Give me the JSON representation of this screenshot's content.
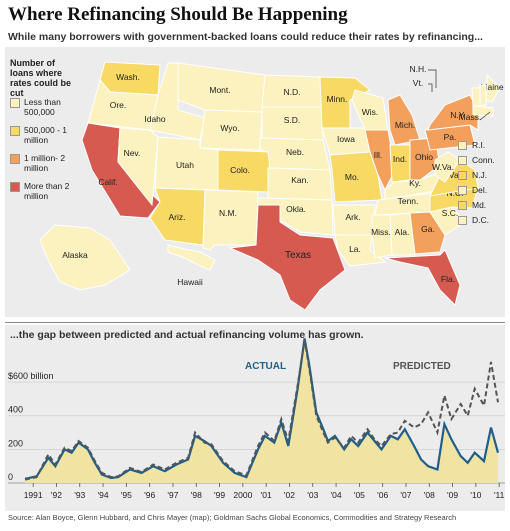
{
  "title": "Where Refinancing Should Be Happening",
  "subtitle": "While many borrowers with government-backed loans could reduce their rates by refinancing...",
  "map": {
    "legend_title": "Number of loans where rates could be cut",
    "legend": [
      {
        "label": "Less than 500,000",
        "color": "#fbf2bf"
      },
      {
        "label": "500,000 - 1 million",
        "color": "#f7d964"
      },
      {
        "label": "1 million- 2 million",
        "color": "#f2a05c"
      },
      {
        "label": "More than 2 million",
        "color": "#d65a50"
      }
    ],
    "states": [
      {
        "abbr": "Wash.",
        "category": 1
      },
      {
        "abbr": "Ore.",
        "category": 0
      },
      {
        "abbr": "Calif.",
        "category": 3
      },
      {
        "abbr": "Idaho",
        "category": 0
      },
      {
        "abbr": "Nev.",
        "category": 0
      },
      {
        "abbr": "Mont.",
        "category": 0
      },
      {
        "abbr": "Wyo.",
        "category": 0
      },
      {
        "abbr": "Utah",
        "category": 0
      },
      {
        "abbr": "Ariz.",
        "category": 1
      },
      {
        "abbr": "Colo.",
        "category": 1
      },
      {
        "abbr": "N.M.",
        "category": 0
      },
      {
        "abbr": "N.D.",
        "category": 0
      },
      {
        "abbr": "S.D.",
        "category": 0
      },
      {
        "abbr": "Neb.",
        "category": 0
      },
      {
        "abbr": "Kan.",
        "category": 0
      },
      {
        "abbr": "Okla.",
        "category": 0
      },
      {
        "abbr": "Texas",
        "category": 3
      },
      {
        "abbr": "Minn.",
        "category": 1
      },
      {
        "abbr": "Iowa",
        "category": 0
      },
      {
        "abbr": "Mo.",
        "category": 1
      },
      {
        "abbr": "Ark.",
        "category": 0
      },
      {
        "abbr": "La.",
        "category": 0
      },
      {
        "abbr": "Wis.",
        "category": 0
      },
      {
        "abbr": "Ill.",
        "category": 2
      },
      {
        "abbr": "Mich.",
        "category": 2
      },
      {
        "abbr": "Ind.",
        "category": 1
      },
      {
        "abbr": "Ohio",
        "category": 2
      },
      {
        "abbr": "Ky.",
        "category": 0
      },
      {
        "abbr": "Tenn.",
        "category": 0
      },
      {
        "abbr": "Miss.",
        "category": 0
      },
      {
        "abbr": "Ala.",
        "category": 0
      },
      {
        "abbr": "Ga.",
        "category": 2
      },
      {
        "abbr": "Fla.",
        "category": 3
      },
      {
        "abbr": "S.C.",
        "category": 0
      },
      {
        "abbr": "N.C.",
        "category": 1
      },
      {
        "abbr": "Va.",
        "category": 1
      },
      {
        "abbr": "W.Va.",
        "category": 0
      },
      {
        "abbr": "Pa.",
        "category": 2
      },
      {
        "abbr": "N.Y.",
        "category": 2
      },
      {
        "abbr": "Maine",
        "category": 0
      },
      {
        "abbr": "N.H.",
        "category": 0
      },
      {
        "abbr": "Vt.",
        "category": 0
      },
      {
        "abbr": "Mass.",
        "category": 0
      },
      {
        "abbr": "Alaska",
        "category": 0
      },
      {
        "abbr": "Hawaii",
        "category": 0
      }
    ],
    "small_states": [
      {
        "abbr": "R.I.",
        "category": 0
      },
      {
        "abbr": "Conn.",
        "category": 0
      },
      {
        "abbr": "N.J.",
        "category": 1
      },
      {
        "abbr": "Del.",
        "category": 0
      },
      {
        "abbr": "Md.",
        "category": 1
      },
      {
        "abbr": "D.C.",
        "category": 0
      }
    ]
  },
  "chart_subtitle": "...the gap between predicted and actual refinancing volume has grown.",
  "chart_data": {
    "type": "line",
    "x_tick_labels": [
      "1991",
      "'92",
      "'93",
      "'94",
      "'95",
      "'96",
      "'97",
      "'98",
      "'99",
      "2000",
      "'01",
      "'02",
      "'03",
      "'04",
      "'05",
      "'06",
      "'07",
      "'08",
      "'09",
      "'10",
      "'11"
    ],
    "y_tick_labels": [
      "$600 billion",
      "400",
      "200",
      "0"
    ],
    "y_ticks": [
      600,
      400,
      200,
      0
    ],
    "ylim": [
      0,
      880
    ],
    "xlim": [
      1991,
      2011.6
    ],
    "series": [
      {
        "name": "ACTUAL",
        "color": "#1f5f8b",
        "x": [
          1991.0,
          1991.5,
          1992.0,
          1992.3,
          1992.7,
          1993.0,
          1993.3,
          1993.7,
          1994.0,
          1994.3,
          1994.7,
          1995.0,
          1995.5,
          1996.0,
          1996.5,
          1997.0,
          1997.5,
          1998.0,
          1998.3,
          1998.7,
          1999.0,
          1999.5,
          2000.0,
          2000.5,
          2001.0,
          2001.3,
          2001.7,
          2002.0,
          2002.3,
          2002.7,
          2003.0,
          2003.2,
          2003.5,
          2003.8,
          2004.0,
          2004.3,
          2004.7,
          2005.0,
          2005.3,
          2005.7,
          2006.0,
          2006.3,
          2006.7,
          2007.0,
          2007.3,
          2007.7,
          2008.0,
          2008.3,
          2008.7,
          2009.0,
          2009.3,
          2009.7,
          2010.0,
          2010.3,
          2010.7,
          2011.0,
          2011.3
        ],
        "values": [
          25,
          40,
          150,
          100,
          200,
          180,
          240,
          200,
          120,
          50,
          30,
          35,
          80,
          60,
          100,
          70,
          110,
          140,
          280,
          250,
          220,
          120,
          60,
          35,
          200,
          280,
          240,
          360,
          220,
          560,
          860,
          700,
          420,
          320,
          250,
          280,
          200,
          260,
          220,
          300,
          250,
          200,
          280,
          260,
          320,
          220,
          140,
          100,
          80,
          350,
          260,
          160,
          120,
          180,
          130,
          330,
          180
        ]
      },
      {
        "name": "PREDICTED",
        "color": "#555555",
        "x": [
          1991.0,
          1991.5,
          1992.0,
          1992.3,
          1992.7,
          1993.0,
          1993.3,
          1993.7,
          1994.0,
          1994.3,
          1994.7,
          1995.0,
          1995.5,
          1996.0,
          1996.5,
          1997.0,
          1997.5,
          1998.0,
          1998.3,
          1998.7,
          1999.0,
          1999.5,
          2000.0,
          2000.5,
          2001.0,
          2001.3,
          2001.7,
          2002.0,
          2002.3,
          2002.7,
          2003.0,
          2003.2,
          2003.5,
          2003.8,
          2004.0,
          2004.3,
          2004.7,
          2005.0,
          2005.3,
          2005.7,
          2006.0,
          2006.3,
          2006.7,
          2007.0,
          2007.3,
          2007.7,
          2008.0,
          2008.3,
          2008.7,
          2009.0,
          2009.3,
          2009.7,
          2010.0,
          2010.3,
          2010.7,
          2011.0,
          2011.3
        ],
        "values": [
          20,
          35,
          170,
          110,
          210,
          190,
          250,
          210,
          130,
          60,
          35,
          40,
          90,
          65,
          110,
          80,
          120,
          150,
          300,
          240,
          230,
          130,
          70,
          45,
          220,
          300,
          250,
          380,
          250,
          580,
          850,
          680,
          400,
          300,
          240,
          270,
          210,
          280,
          240,
          320,
          260,
          220,
          290,
          300,
          370,
          330,
          350,
          420,
          300,
          520,
          380,
          470,
          400,
          560,
          460,
          720,
          480
        ]
      }
    ],
    "area_under": "ACTUAL"
  },
  "source": "Source: Alan Boyce, Glenn Hubbard, and Chris Mayer (map); Goldman Sachs Global Economics, Commodities and Strategy Research"
}
